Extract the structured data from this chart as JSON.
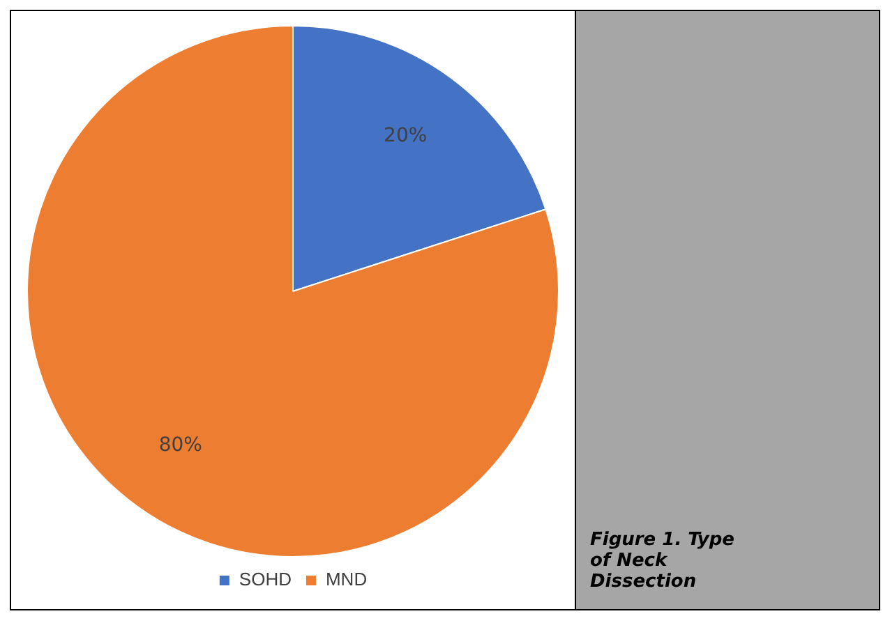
{
  "chart_data": {
    "type": "pie",
    "title": "Figure 1. Type of Neck Dissection",
    "categories": [
      "SOHD",
      "MND"
    ],
    "values": [
      20,
      80
    ],
    "colors": [
      "#4472c4",
      "#ed7d31"
    ],
    "value_labels": [
      "20%",
      "80%"
    ],
    "legend": "bottom"
  }
}
